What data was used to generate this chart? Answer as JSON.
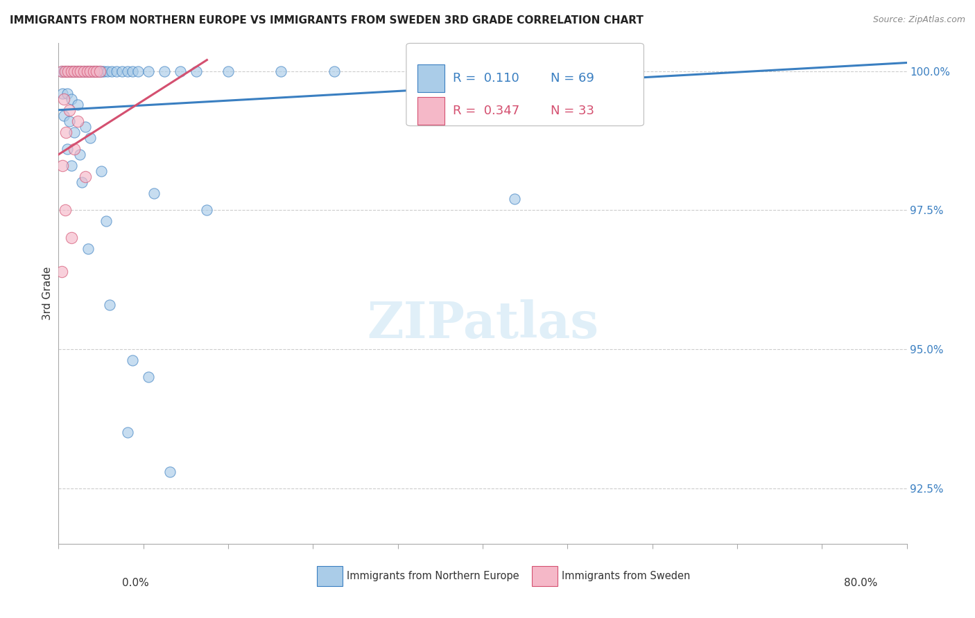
{
  "title": "IMMIGRANTS FROM NORTHERN EUROPE VS IMMIGRANTS FROM SWEDEN 3RD GRADE CORRELATION CHART",
  "source": "Source: ZipAtlas.com",
  "ylabel": "3rd Grade",
  "right_yticks": [
    100.0,
    97.5,
    95.0,
    92.5
  ],
  "right_ytick_labels": [
    "100.0%",
    "97.5%",
    "95.0%",
    "92.5%"
  ],
  "legend_blue_R": "0.110",
  "legend_blue_N": "69",
  "legend_pink_R": "0.347",
  "legend_pink_N": "33",
  "legend_blue_label": "Immigrants from Northern Europe",
  "legend_pink_label": "Immigrants from Sweden",
  "watermark": "ZIPatlas",
  "blue_color": "#aacce8",
  "pink_color": "#f5b8c8",
  "trendline_blue_color": "#3a7fc1",
  "trendline_pink_color": "#d45070",
  "blue_scatter": [
    [
      0.3,
      100.0
    ],
    [
      0.5,
      100.0
    ],
    [
      0.7,
      100.0
    ],
    [
      0.9,
      100.0
    ],
    [
      1.1,
      100.0
    ],
    [
      1.3,
      100.0
    ],
    [
      1.5,
      100.0
    ],
    [
      1.7,
      100.0
    ],
    [
      1.9,
      100.0
    ],
    [
      2.1,
      100.0
    ],
    [
      2.3,
      100.0
    ],
    [
      2.5,
      100.0
    ],
    [
      2.7,
      100.0
    ],
    [
      2.9,
      100.0
    ],
    [
      3.1,
      100.0
    ],
    [
      3.3,
      100.0
    ],
    [
      3.5,
      100.0
    ],
    [
      3.7,
      100.0
    ],
    [
      3.9,
      100.0
    ],
    [
      4.1,
      100.0
    ],
    [
      4.3,
      100.0
    ],
    [
      4.6,
      100.0
    ],
    [
      5.0,
      100.0
    ],
    [
      5.5,
      100.0
    ],
    [
      6.0,
      100.0
    ],
    [
      6.5,
      100.0
    ],
    [
      7.0,
      100.0
    ],
    [
      7.5,
      100.0
    ],
    [
      8.5,
      100.0
    ],
    [
      10.0,
      100.0
    ],
    [
      11.5,
      100.0
    ],
    [
      13.0,
      100.0
    ],
    [
      16.0,
      100.0
    ],
    [
      21.0,
      100.0
    ],
    [
      26.0,
      100.0
    ],
    [
      33.5,
      100.0
    ],
    [
      40.0,
      100.0
    ],
    [
      53.0,
      100.0
    ],
    [
      0.4,
      99.6
    ],
    [
      0.8,
      99.6
    ],
    [
      1.2,
      99.5
    ],
    [
      1.8,
      99.4
    ],
    [
      0.5,
      99.2
    ],
    [
      1.0,
      99.1
    ],
    [
      2.5,
      99.0
    ],
    [
      1.5,
      98.9
    ],
    [
      3.0,
      98.8
    ],
    [
      0.8,
      98.6
    ],
    [
      2.0,
      98.5
    ],
    [
      1.2,
      98.3
    ],
    [
      4.0,
      98.2
    ],
    [
      2.2,
      98.0
    ],
    [
      9.0,
      97.8
    ],
    [
      43.0,
      97.7
    ],
    [
      14.0,
      97.5
    ],
    [
      4.5,
      97.3
    ],
    [
      2.8,
      96.8
    ],
    [
      4.8,
      95.8
    ],
    [
      7.0,
      94.8
    ],
    [
      8.5,
      94.5
    ],
    [
      6.5,
      93.5
    ],
    [
      10.5,
      92.8
    ]
  ],
  "pink_scatter": [
    [
      0.3,
      100.0
    ],
    [
      0.6,
      100.0
    ],
    [
      0.9,
      100.0
    ],
    [
      1.2,
      100.0
    ],
    [
      1.5,
      100.0
    ],
    [
      1.8,
      100.0
    ],
    [
      2.1,
      100.0
    ],
    [
      2.4,
      100.0
    ],
    [
      2.7,
      100.0
    ],
    [
      3.0,
      100.0
    ],
    [
      3.3,
      100.0
    ],
    [
      3.6,
      100.0
    ],
    [
      3.9,
      100.0
    ],
    [
      0.5,
      99.5
    ],
    [
      1.0,
      99.3
    ],
    [
      1.8,
      99.1
    ],
    [
      0.7,
      98.9
    ],
    [
      1.5,
      98.6
    ],
    [
      0.4,
      98.3
    ],
    [
      2.5,
      98.1
    ],
    [
      0.6,
      97.5
    ],
    [
      1.2,
      97.0
    ],
    [
      0.3,
      96.4
    ]
  ],
  "xmin": 0.0,
  "xmax": 80.0,
  "ymin": 91.5,
  "ymax": 100.5,
  "xtick_positions": [
    0.0,
    8.0,
    16.0,
    24.0,
    32.0,
    40.0,
    48.0,
    56.0,
    64.0,
    72.0,
    80.0
  ],
  "gridline_y": [
    92.5,
    95.0,
    97.5,
    100.0
  ],
  "blue_trend_x0": 0.0,
  "blue_trend_y0": 99.3,
  "blue_trend_x1": 80.0,
  "blue_trend_y1": 100.15,
  "pink_trend_x0": 0.0,
  "pink_trend_y0": 98.5,
  "pink_trend_x1": 14.0,
  "pink_trend_y1": 100.2
}
